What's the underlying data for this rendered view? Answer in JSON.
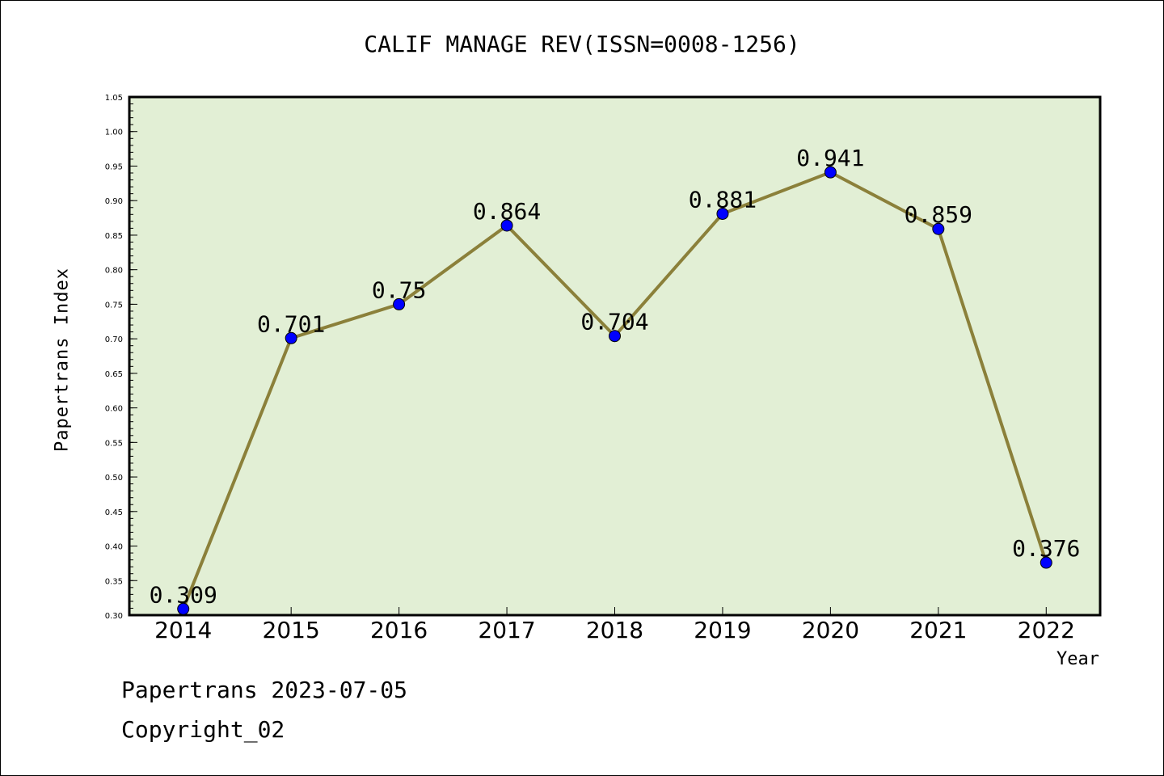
{
  "title": "CALIF MANAGE REV(ISSN=0008-1256)",
  "footer": {
    "line1": "Papertrans 2023-07-05",
    "line2": "Copyright_02"
  },
  "colors": {
    "plot_bg": "#e2efd5",
    "line": "#8b803a",
    "marker": "#0000ff"
  },
  "chart_data": {
    "type": "line",
    "xlabel": "Year",
    "ylabel": "Papertrans Index",
    "ylim": [
      0.3,
      1.05
    ],
    "y_ticks": [
      "0.30",
      "0.35",
      "0.40",
      "0.45",
      "0.50",
      "0.55",
      "0.60",
      "0.65",
      "0.70",
      "0.75",
      "0.80",
      "0.85",
      "0.90",
      "0.95",
      "1.00",
      "1.05"
    ],
    "categories": [
      "2014",
      "2015",
      "2016",
      "2017",
      "2018",
      "2019",
      "2020",
      "2021",
      "2022"
    ],
    "series": [
      {
        "values": [
          0.309,
          0.701,
          0.75,
          0.864,
          0.704,
          0.881,
          0.941,
          0.859,
          0.376
        ],
        "labels": [
          "0.309",
          "0.701",
          "0.75",
          "0.864",
          "0.704",
          "0.881",
          "0.941",
          "0.859",
          "0.376"
        ]
      }
    ],
    "grid": false,
    "legend": "none"
  }
}
